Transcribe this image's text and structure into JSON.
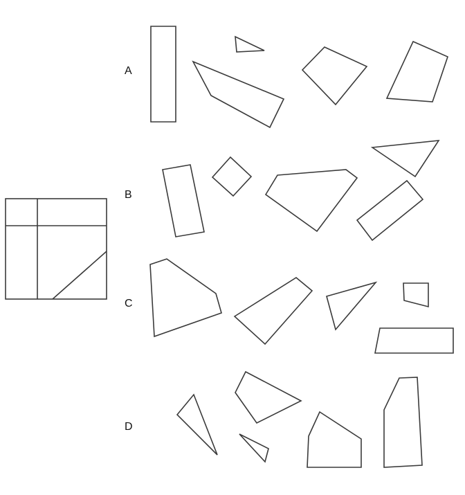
{
  "options": [
    {
      "label": "A"
    },
    {
      "label": "B"
    },
    {
      "label": "C"
    },
    {
      "label": "D"
    }
  ],
  "colors": {
    "stroke": "#3a3a3a",
    "background": "#ffffff",
    "text": "#111111"
  }
}
